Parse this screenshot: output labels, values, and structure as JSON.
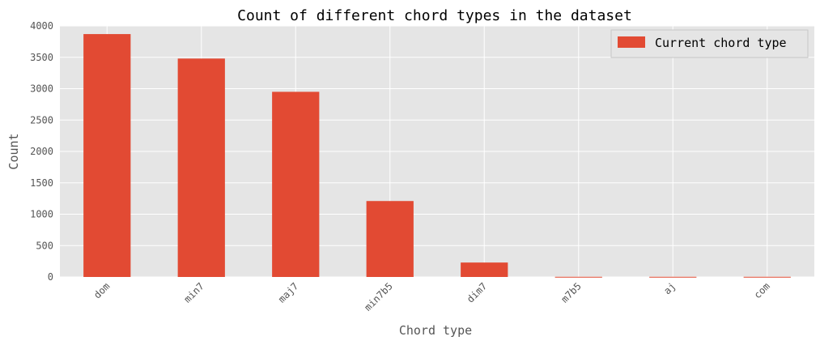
{
  "chart_data": {
    "type": "bar",
    "title": "Count of different chord types in the dataset",
    "xlabel": "Chord type",
    "ylabel": "Count",
    "categories": [
      "dom",
      "min7",
      "maj7",
      "min7b5",
      "dim7",
      "m7b5",
      "aj",
      "com"
    ],
    "series": [
      {
        "name": "Current chord type",
        "values": [
          3870,
          3480,
          2950,
          1210,
          230,
          3,
          3,
          3
        ]
      }
    ],
    "ylim": [
      0,
      4000
    ],
    "yticks": [
      0,
      500,
      1000,
      1500,
      2000,
      2500,
      3000,
      3500,
      4000
    ],
    "grid": true,
    "legend_position": "top-right",
    "colors": {
      "bar": "#E24A33",
      "background": "#E5E5E5",
      "grid": "#FFFFFF"
    }
  }
}
